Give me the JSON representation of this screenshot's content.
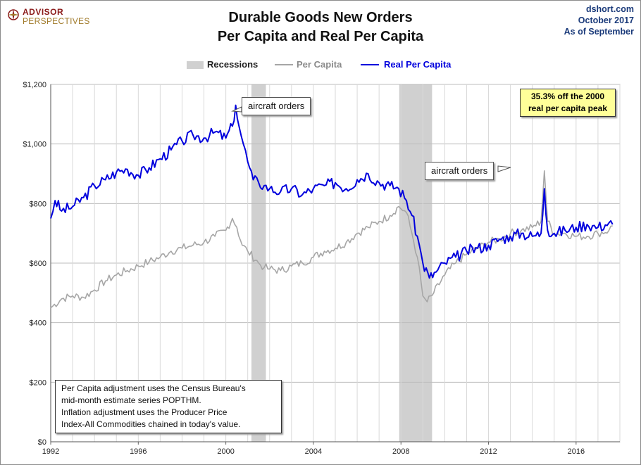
{
  "header": {
    "logo_top": "ADVISOR",
    "logo_bottom": "PERSPECTIVES",
    "title_line1": "Durable Goods New Orders",
    "title_line2": "Per Capita and Real Per Capita",
    "source_line1": "dshort.com",
    "source_line2": "October 2017",
    "source_line3": "As of September"
  },
  "legend": {
    "recessions": "Recessions",
    "per_capita": "Per Capita",
    "real_per_capita": "Real Per Capita"
  },
  "annotations": {
    "aircraft_1": "aircraft orders",
    "aircraft_2": "aircraft orders",
    "peak_line1": "35.3% off the 2000",
    "peak_line2": "real per capita peak",
    "note_line1": "Per Capita adjustment uses the Census Bureau's",
    "note_line2": "mid-month estimate series POPTHM.",
    "note_line3": "Inflation adjustment uses the Producer Price",
    "note_line4": "Index-All Commodities chained in today's value."
  },
  "colors": {
    "per_capita": "#a6a6a6",
    "real_per_capita": "#0000dd",
    "recession": "#d0d0d0",
    "peak_box": "#ffff99"
  },
  "chart_data": {
    "type": "line",
    "x_axis": {
      "min": 1992,
      "max": 2018.0,
      "ticks": [
        "1992",
        "1996",
        "2000",
        "2004",
        "2008",
        "2012",
        "2016"
      ]
    },
    "y_axis": {
      "min": 0,
      "max": 1200,
      "ticks": [
        "$0",
        "$200",
        "$400",
        "$600",
        "$800",
        "$1,000",
        "$1,200"
      ]
    },
    "grid": true,
    "legend_position": "top",
    "recessions": [
      [
        2001.17,
        2001.83
      ],
      [
        2007.92,
        2009.42
      ]
    ],
    "series": [
      {
        "name": "Per Capita",
        "x": [
          1992.0,
          1992.5,
          1993.0,
          1993.5,
          1994.0,
          1994.5,
          1995.0,
          1995.5,
          1996.0,
          1996.5,
          1997.0,
          1997.5,
          1998.0,
          1998.5,
          1999.0,
          1999.5,
          2000.0,
          2000.3,
          2000.5,
          2000.75,
          2001.0,
          2001.5,
          2001.75,
          2002.0,
          2002.5,
          2003.0,
          2003.5,
          2004.0,
          2004.5,
          2005.0,
          2005.5,
          2006.0,
          2006.5,
          2007.0,
          2007.5,
          2007.9,
          2008.25,
          2008.5,
          2008.75,
          2009.0,
          2009.2,
          2009.5,
          2010.0,
          2010.5,
          2011.0,
          2011.5,
          2012.0,
          2012.5,
          2013.0,
          2013.5,
          2014.0,
          2014.4,
          2014.55,
          2014.7,
          2015.0,
          2015.5,
          2016.0,
          2016.5,
          2017.0,
          2017.5,
          2017.67
        ],
        "values": [
          450,
          480,
          490,
          485,
          510,
          540,
          560,
          575,
          590,
          605,
          620,
          640,
          650,
          660,
          670,
          690,
          710,
          750,
          720,
          660,
          640,
          600,
          585,
          580,
          575,
          590,
          600,
          620,
          640,
          650,
          670,
          700,
          720,
          740,
          760,
          790,
          770,
          700,
          620,
          490,
          470,
          500,
          560,
          600,
          630,
          650,
          670,
          680,
          700,
          710,
          720,
          740,
          910,
          740,
          700,
          700,
          690,
          690,
          700,
          710,
          725
        ]
      },
      {
        "name": "Real Per Capita",
        "x": [
          1992.0,
          1992.2,
          1992.5,
          1993.0,
          1993.5,
          1994.0,
          1994.5,
          1995.0,
          1995.5,
          1996.0,
          1996.5,
          1997.0,
          1997.5,
          1998.0,
          1998.5,
          1999.0,
          1999.5,
          2000.0,
          2000.3,
          2000.45,
          2000.6,
          2000.8,
          2001.0,
          2001.25,
          2001.5,
          2001.75,
          2002.0,
          2002.5,
          2003.0,
          2003.5,
          2004.0,
          2004.5,
          2005.0,
          2005.5,
          2006.0,
          2006.5,
          2007.0,
          2007.5,
          2007.9,
          2008.25,
          2008.5,
          2008.75,
          2009.0,
          2009.3,
          2009.6,
          2010.0,
          2010.5,
          2011.0,
          2011.5,
          2012.0,
          2012.5,
          2013.0,
          2013.5,
          2014.0,
          2014.4,
          2014.55,
          2014.7,
          2015.0,
          2015.5,
          2016.0,
          2016.5,
          2017.0,
          2017.5,
          2017.67
        ],
        "values": [
          750,
          810,
          775,
          790,
          820,
          860,
          880,
          905,
          915,
          895,
          920,
          950,
          980,
          1010,
          1030,
          1020,
          1040,
          1020,
          1060,
          1130,
          1060,
          1000,
          940,
          880,
          870,
          860,
          850,
          840,
          850,
          830,
          850,
          860,
          870,
          850,
          880,
          900,
          870,
          860,
          850,
          810,
          760,
          690,
          600,
          550,
          570,
          600,
          620,
          640,
          650,
          660,
          680,
          690,
          700,
          690,
          700,
          850,
          710,
          700,
          710,
          720,
          730,
          720,
          735,
          730
        ]
      }
    ]
  }
}
